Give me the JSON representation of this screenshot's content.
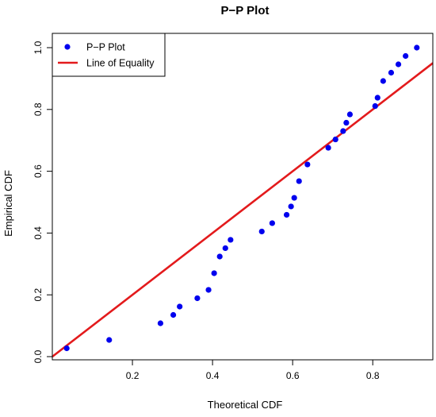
{
  "chart_data": {
    "type": "scatter",
    "title": "P−P Plot",
    "xlabel": "Theoretical CDF",
    "ylabel": "Empirical CDF",
    "xlim": [
      0.0,
      0.95
    ],
    "ylim": [
      0.0,
      1.0
    ],
    "x_ticks": [
      0.2,
      0.4,
      0.6,
      0.8
    ],
    "x_tick_labels": [
      "0.2",
      "0.4",
      "0.6",
      "0.8"
    ],
    "y_ticks": [
      0.0,
      0.2,
      0.4,
      0.6,
      0.8,
      1.0
    ],
    "y_tick_labels": [
      "0.0",
      "0.2",
      "0.4",
      "0.6",
      "0.8",
      "1.0"
    ],
    "grid": false,
    "legend_position": "top-left",
    "series": [
      {
        "name": "P−P Plot",
        "kind": "points",
        "color": "#0000ee",
        "x": [
          0.036,
          0.142,
          0.27,
          0.302,
          0.318,
          0.362,
          0.39,
          0.404,
          0.418,
          0.432,
          0.445,
          0.523,
          0.549,
          0.585,
          0.596,
          0.604,
          0.616,
          0.637,
          0.689,
          0.707,
          0.726,
          0.734,
          0.743,
          0.806,
          0.812,
          0.826,
          0.846,
          0.864,
          0.882,
          0.91
        ],
        "y": [
          0.027,
          0.054,
          0.108,
          0.135,
          0.162,
          0.189,
          0.216,
          0.27,
          0.324,
          0.351,
          0.378,
          0.405,
          0.432,
          0.459,
          0.486,
          0.514,
          0.568,
          0.622,
          0.676,
          0.703,
          0.73,
          0.757,
          0.784,
          0.811,
          0.838,
          0.892,
          0.919,
          0.946,
          0.973,
          1.0
        ]
      },
      {
        "name": "Line of Equality",
        "kind": "line",
        "color": "#e31a1c",
        "x": [
          0.0,
          0.95
        ],
        "y": [
          0.0,
          0.95
        ]
      }
    ]
  }
}
